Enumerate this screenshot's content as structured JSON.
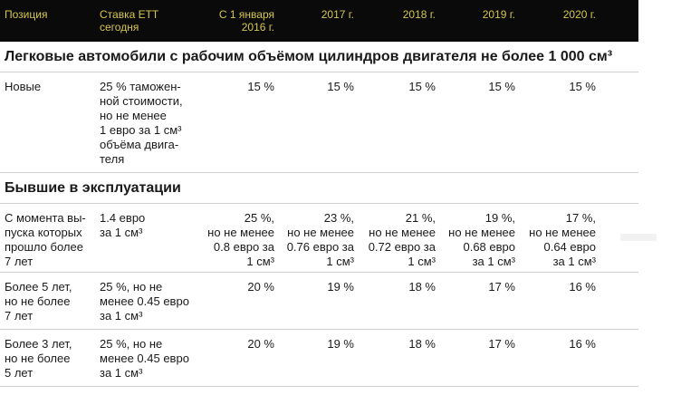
{
  "columns": [
    "Позиция",
    "Ставка ЕТТ\nсегодня",
    "С 1 января\n2016 г.",
    "2017 г.",
    "2018 г.",
    "2019 г.",
    "2020 г."
  ],
  "sections": [
    {
      "title": "Легковые автомобили с рабочим объёмом цилиндров двигателя не более 1 000 см³",
      "rows": [
        {
          "position": "Новые",
          "rate": "25 % таможен-\nной стоимости,\nно не менее\n1 евро за 1 см³\nобъёма двига-\nтеля",
          "values": [
            "15 %",
            "15 %",
            "15 %",
            "15 %",
            "15 %"
          ]
        }
      ]
    },
    {
      "title": "Бывшие в эксплуатации",
      "rows": [
        {
          "position": "С момента вы-\nпуска которых\nпрошло более\n7 лет",
          "rate": "1.4 евро\nза 1 см³",
          "values": [
            "25 %,\nно не менее\n0.8 евро за\n1 см³",
            "23 %,\nно не менее\n0.76 евро за\n1 см³",
            "21 %,\nно не менее\n0.72 евро за\n1 см³",
            "19 %,\nно не менее\n0.68 евро\nза 1 см³",
            "17 %,\nно не менее\n0.64 евро\nза 1 см³"
          ]
        },
        {
          "position": "Более 5 лет,\nно не более\n7 лет",
          "rate": "25 %, но не\nменее 0.45 евро\nза 1 см³",
          "values": [
            "20 %",
            "19 %",
            "18 %",
            "17 %",
            "16 %"
          ]
        },
        {
          "position": "Более 3 лет,\nно не более\n5 лет",
          "rate": "25 %, но не\nменее 0.45 евро\nза 1 см³",
          "values": [
            "20 %",
            "19 %",
            "18 %",
            "17 %",
            "16 %"
          ]
        }
      ]
    }
  ]
}
